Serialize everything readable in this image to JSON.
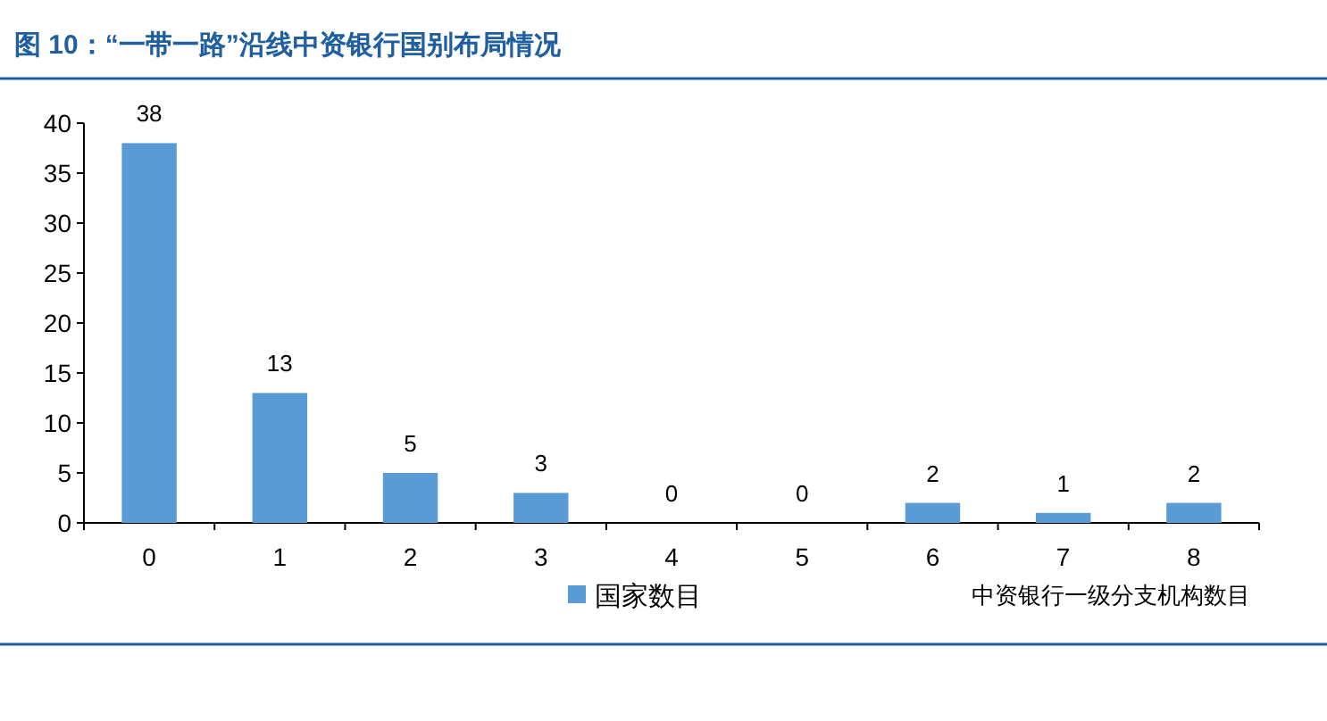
{
  "chart_data": {
    "type": "bar",
    "title": "图 10：“一带一路”沿线中资银行国别布局情况",
    "xlabel": "中资银行一级分支机构数目",
    "categories": [
      "0",
      "1",
      "2",
      "3",
      "4",
      "5",
      "6",
      "7",
      "8"
    ],
    "series": [
      {
        "name": "国家数目",
        "color": "#5b9bd5",
        "values": [
          38,
          13,
          5,
          3,
          0,
          0,
          2,
          1,
          2
        ]
      }
    ],
    "ylim": [
      0,
      40
    ],
    "yticks": [
      0,
      5,
      10,
      15,
      20,
      25,
      30,
      35,
      40
    ],
    "data_labels": true,
    "legend": "bottom",
    "grid": false
  }
}
